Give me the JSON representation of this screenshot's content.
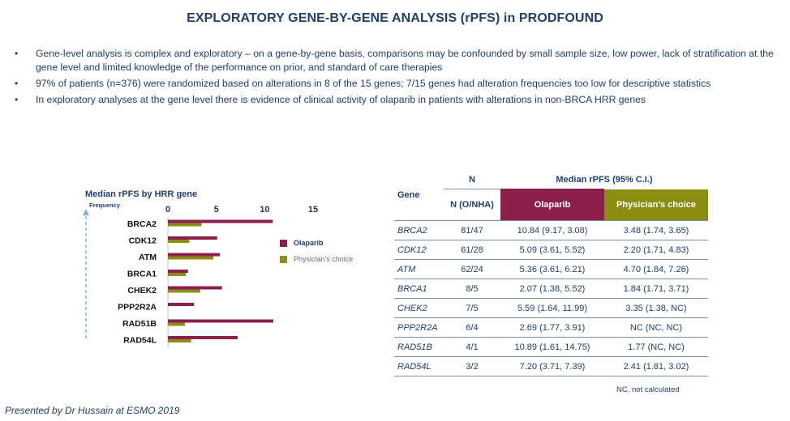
{
  "title": "EXPLORATORY GENE-BY-GENE ANALYSIS (rPFS) in PRODFOUND",
  "bullets": [
    "Gene-level analysis is complex and exploratory – on a gene-by-gene basis, comparisons may be confounded by small sample size, low power, lack of stratification at the gene level and limited knowledge of the performance on prior, and standard of care therapies",
    "97% of patients (n=376) were randomized based on alterations in 8 of the 15 genes; 7/15 genes had alteration frequencies too low for descriptive statistics",
    "In exploratory analyses at the gene level there is evidence of clinical activity of olaparib in patients with alterations in non-BRCA HRR genes"
  ],
  "bullet_char": "•",
  "chart_data": {
    "type": "bar",
    "orientation": "horizontal",
    "title": "Median rPFS by HRR gene",
    "frequency_label": "Frequency",
    "categories": [
      "BRCA2",
      "CDK12",
      "ATM",
      "BRCA1",
      "CHEK2",
      "PPP2R2A",
      "RAD51B",
      "RAD54L"
    ],
    "series": [
      {
        "name": "Olaparib",
        "values": [
          10.84,
          5.09,
          5.36,
          2.07,
          5.59,
          2.69,
          10.89,
          7.2
        ],
        "color": "#8c1f4e"
      },
      {
        "name": "Physician's choice",
        "values": [
          3.48,
          2.2,
          4.7,
          1.84,
          3.35,
          null,
          1.77,
          2.41
        ],
        "color": "#8a8f12"
      }
    ],
    "xlim": [
      0,
      15
    ],
    "xticks": [
      "0",
      "5",
      "10",
      "15"
    ],
    "legend_position": "right",
    "grid": false
  },
  "table": {
    "header_gene": "Gene",
    "header_n": "N",
    "header_n_sub": "N (O/NHA)",
    "header_median": "Median rPFS (95% C.I.)",
    "header_olaparib": "Olaparib",
    "header_physician": "Physician’s choice",
    "rows": [
      {
        "gene": "BRCA2",
        "n": "81/47",
        "olaparib": "10.84 (9.17, 3.08)",
        "physician": "3.48 (1.74, 3.65)"
      },
      {
        "gene": "CDK12",
        "n": "61/28",
        "olaparib": "5.09 (3.61, 5.52)",
        "physician": "2.20 (1.71, 4.83)"
      },
      {
        "gene": "ATM",
        "n": "62/24",
        "olaparib": "5.36 (3.61, 6.21)",
        "physician": "4.70 (1.84, 7.26)"
      },
      {
        "gene": "BRCA1",
        "n": "8/5",
        "olaparib": "2.07 (1.38, 5.52)",
        "physician": "1.84 (1.71, 3.71)"
      },
      {
        "gene": "CHEK2",
        "n": "7/5",
        "olaparib": "5.59 (1.64, 11.99)",
        "physician": "3.35 (1.38, NC)"
      },
      {
        "gene": "PPP2R2A",
        "n": "6/4",
        "olaparib": "2.69 (1.77, 3.91)",
        "physician": "NC (NC, NC)"
      },
      {
        "gene": "RAD51B",
        "n": "4/1",
        "olaparib": "10.89 (1.61, 14.75)",
        "physician": "1.77 (NC, NC)"
      },
      {
        "gene": "RAD54L",
        "n": "3/2",
        "olaparib": "7.20 (3.71, 7.39)",
        "physician": "2.41 (1.81, 3.02)"
      }
    ]
  },
  "nc_note": "NC, not calculated",
  "footer": "Presented by Dr Hussain at ESMO 2019"
}
